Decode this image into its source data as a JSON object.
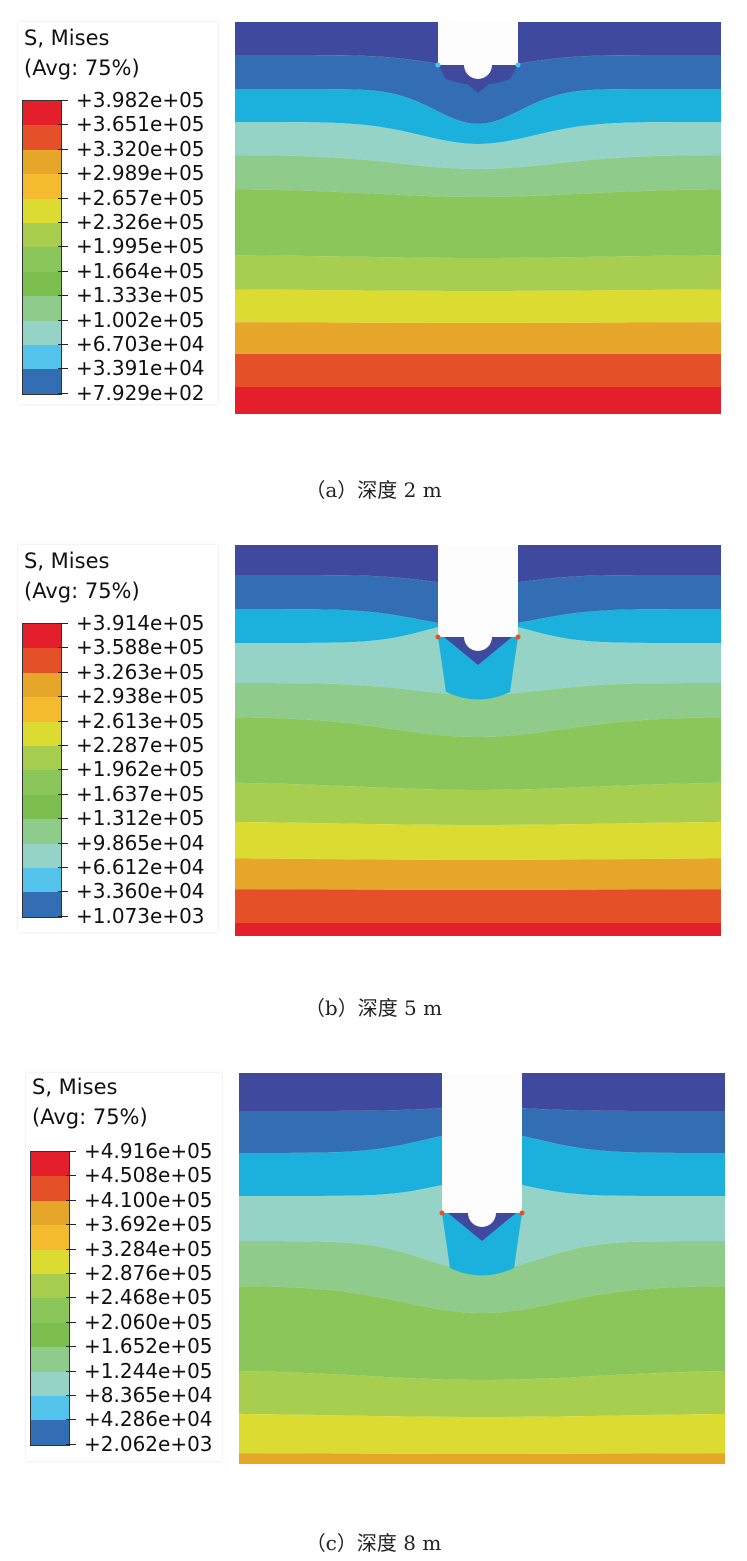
{
  "colormap": [
    "#e41e2a",
    "#e45128",
    "#e6a62a",
    "#f5bb2e",
    "#dbdb32",
    "#a7ce4e",
    "#8bc65a",
    "#7cbf4f",
    "#8fcb8a",
    "#95d3c6",
    "#53c3ec",
    "#336eb4",
    "#3f4a9e"
  ],
  "band_colors_top_to_bottom": [
    "#3f4a9e",
    "#336eb4",
    "#1cb0dd",
    "#95d3c6",
    "#8fcb8a",
    "#8bc65a",
    "#a7ce4e",
    "#dbdb32",
    "#e6a62a",
    "#e45128",
    "#e41e2a"
  ],
  "panels": [
    {
      "legend_title": "S, Mises",
      "legend_subtitle": "(Avg: 75%)",
      "legend_values": [
        "+3.982e+05",
        "+3.651e+05",
        "+3.320e+05",
        "+2.989e+05",
        "+2.657e+05",
        "+2.326e+05",
        "+1.995e+05",
        "+1.664e+05",
        "+1.333e+05",
        "+1.002e+05",
        "+6.703e+04",
        "+3.391e+04",
        "+7.929e+02"
      ],
      "caption": "（a）深度 2 m"
    },
    {
      "legend_title": "S, Mises",
      "legend_subtitle": "(Avg: 75%)",
      "legend_values": [
        "+3.914e+05",
        "+3.588e+05",
        "+3.263e+05",
        "+2.938e+05",
        "+2.613e+05",
        "+2.287e+05",
        "+1.962e+05",
        "+1.637e+05",
        "+1.312e+05",
        "+9.865e+04",
        "+6.612e+04",
        "+3.360e+04",
        "+1.073e+03"
      ],
      "caption": "（b）深度 5 m"
    },
    {
      "legend_title": "S, Mises",
      "legend_subtitle": "(Avg: 75%)",
      "legend_values": [
        "+4.916e+05",
        "+4.508e+05",
        "+4.100e+05",
        "+3.692e+05",
        "+3.284e+05",
        "+2.876e+05",
        "+2.468e+05",
        "+2.060e+05",
        "+1.652e+05",
        "+1.244e+05",
        "+8.365e+04",
        "+4.286e+04",
        "+2.062e+03"
      ],
      "caption": "（c）深度 8 m"
    }
  ]
}
